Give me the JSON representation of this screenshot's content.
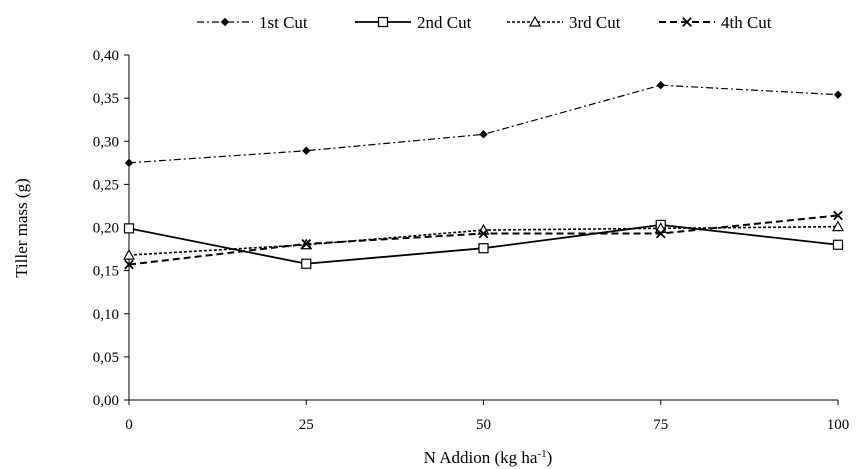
{
  "chart_data": {
    "type": "line",
    "title": "",
    "xlabel": "N Addion (kg ha",
    "xlabel_sup": "-1",
    "xlabel_suffix": ")",
    "ylabel": "Tiller mass (g)",
    "x": [
      0,
      25,
      50,
      75,
      100
    ],
    "xlim": [
      0,
      100
    ],
    "ylim": [
      0,
      0.4
    ],
    "x_ticks": [
      "0",
      "25",
      "50",
      "75",
      "100"
    ],
    "y_ticks": [
      "0,00",
      "0,05",
      "0,10",
      "0,15",
      "0,20",
      "0,25",
      "0,30",
      "0,35",
      "0,40"
    ],
    "grid": false,
    "legend_position": "top",
    "series": [
      {
        "name": "1st Cut",
        "values": [
          0.275,
          0.289,
          0.308,
          0.365,
          0.354
        ],
        "marker": "diamond",
        "dash": "dash-dot"
      },
      {
        "name": "2nd Cut",
        "values": [
          0.199,
          0.158,
          0.176,
          0.203,
          0.18
        ],
        "marker": "square-open",
        "dash": "solid"
      },
      {
        "name": "3rd Cut",
        "values": [
          0.168,
          0.18,
          0.197,
          0.199,
          0.201
        ],
        "marker": "triangle-open",
        "dash": "dotted"
      },
      {
        "name": "4th Cut",
        "values": [
          0.157,
          0.181,
          0.193,
          0.193,
          0.214
        ],
        "marker": "x",
        "dash": "dashed"
      }
    ]
  }
}
